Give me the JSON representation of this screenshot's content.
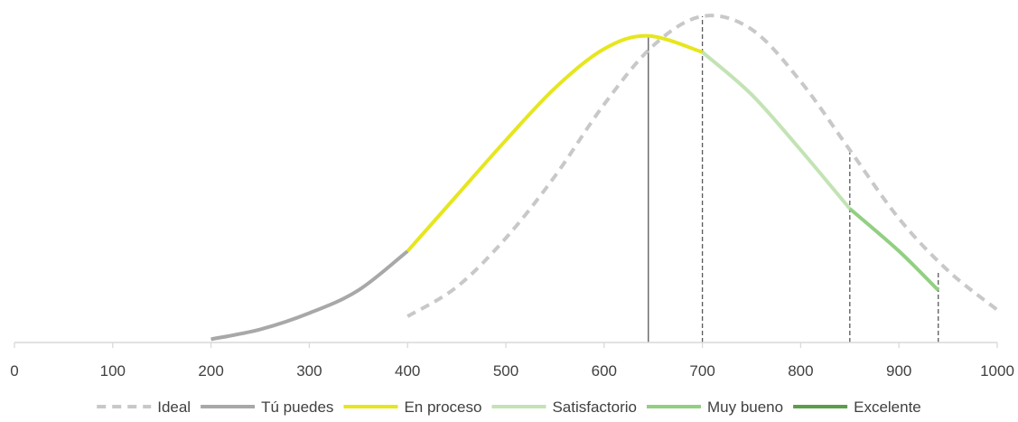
{
  "chart_data": {
    "type": "line",
    "title": "",
    "xlabel": "",
    "ylabel": "",
    "xlim": [
      0,
      1000
    ],
    "x_ticks": [
      "0",
      "100",
      "200",
      "300",
      "400",
      "500",
      "600",
      "700",
      "800",
      "900",
      "1000"
    ],
    "y_axis_visible": false,
    "grid": false,
    "legend_position": "bottom",
    "series": [
      {
        "name": "Ideal",
        "style": "dashed",
        "color": "#c8c8c8",
        "x": [
          400,
          450,
          500,
          550,
          600,
          650,
          700,
          750,
          800,
          850,
          900,
          950,
          1000
        ],
        "y": [
          0.08,
          0.17,
          0.32,
          0.51,
          0.73,
          0.91,
          1.0,
          0.96,
          0.8,
          0.59,
          0.38,
          0.22,
          0.1
        ]
      },
      {
        "name": "Tú puedes",
        "style": "solid",
        "color": "#a8a8a8",
        "x": [
          200,
          250,
          300,
          350,
          400
        ],
        "y": [
          0.01,
          0.04,
          0.09,
          0.16,
          0.28
        ]
      },
      {
        "name": "En proceso",
        "style": "solid",
        "color": "#e6e61e",
        "x": [
          400,
          450,
          500,
          550,
          600,
          645,
          700
        ],
        "y": [
          0.28,
          0.45,
          0.62,
          0.78,
          0.9,
          0.94,
          0.89
        ]
      },
      {
        "name": "Satisfactorio",
        "style": "solid",
        "color": "#c3e3b4",
        "x": [
          700,
          750,
          800,
          850
        ],
        "y": [
          0.89,
          0.76,
          0.59,
          0.41
        ]
      },
      {
        "name": "Muy bueno",
        "style": "solid",
        "color": "#92cf82",
        "x": [
          850,
          900,
          940
        ],
        "y": [
          0.41,
          0.28,
          0.16
        ]
      },
      {
        "name": "Excelente",
        "style": "solid",
        "color": "#5a9e4a",
        "x": [],
        "y": []
      }
    ],
    "reference_lines": [
      {
        "x": 645,
        "style": "solid",
        "color": "#595959",
        "y_top": 0.94
      },
      {
        "x": 700,
        "style": "dashed",
        "color": "#595959",
        "y_top": 1.0
      },
      {
        "x": 850,
        "style": "dashed",
        "color": "#595959",
        "y_top": 0.59
      },
      {
        "x": 940,
        "style": "dashed",
        "color": "#595959",
        "y_top": 0.22
      }
    ]
  }
}
